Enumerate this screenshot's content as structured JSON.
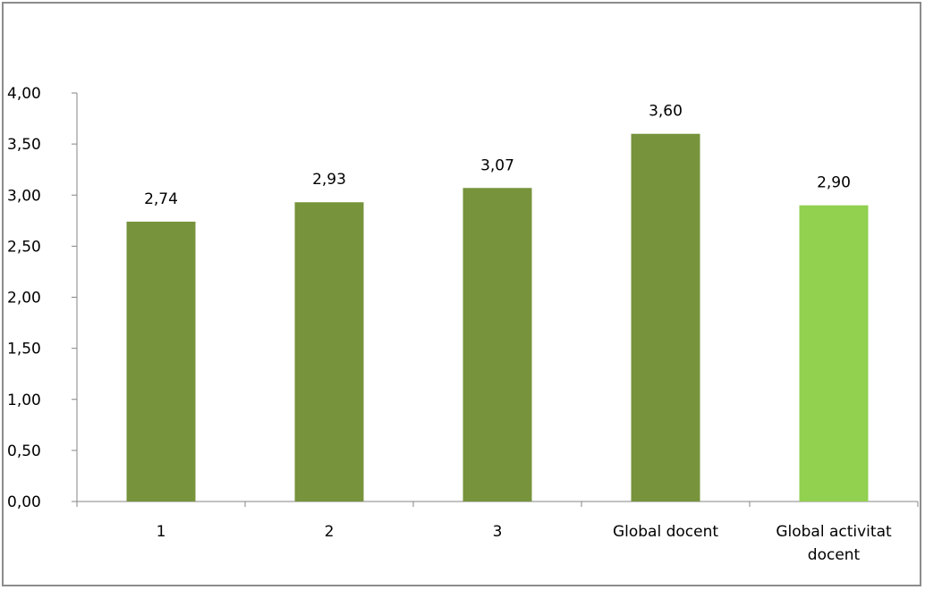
{
  "chart_data": {
    "type": "bar",
    "categories": [
      [
        "1"
      ],
      [
        "2"
      ],
      [
        "3"
      ],
      [
        "Global docent"
      ],
      [
        "Global activitat",
        "docent"
      ]
    ],
    "values": [
      2.74,
      2.93,
      3.07,
      3.6,
      2.9
    ],
    "data_labels": [
      "2,74",
      "2,93",
      "3,07",
      "3,60",
      "2,90"
    ],
    "bar_colors": [
      "#77933c",
      "#77933c",
      "#77933c",
      "#77933c",
      "#92d050"
    ],
    "ylim": [
      0,
      4
    ],
    "yticks": [
      0,
      0.5,
      1,
      1.5,
      2,
      2.5,
      3,
      3.5,
      4
    ],
    "ytick_labels": [
      "0,00",
      "0,50",
      "1,00",
      "1,50",
      "2,00",
      "2,50",
      "3,00",
      "3,50",
      "4,00"
    ],
    "grid": false,
    "legend": "none",
    "title": "",
    "xlabel": "",
    "ylabel": ""
  }
}
